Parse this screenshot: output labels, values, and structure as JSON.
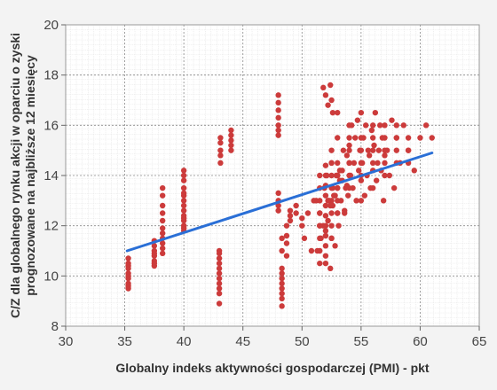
{
  "chart_data": {
    "type": "scatter",
    "xlabel": "Globalny indeks aktywności gospodarczej (PMI) - pkt",
    "ylabel_lines": [
      "C/Z dla globalnego rynku akcji w oparciu o zyski",
      "prognozowane na najbliższe 12 miesięcy"
    ],
    "xlim": [
      30,
      65
    ],
    "ylim": [
      8,
      20
    ],
    "x_ticks": [
      30,
      35,
      40,
      45,
      50,
      55,
      60,
      65
    ],
    "y_ticks": [
      8,
      10,
      12,
      14,
      16,
      18,
      20
    ],
    "x_tick_labels": [
      "30",
      "35",
      "40",
      "45",
      "50",
      "55",
      "60",
      "65"
    ],
    "y_tick_labels": [
      "8",
      "10",
      "12",
      "14",
      "16",
      "18",
      "20"
    ],
    "grid": true,
    "trendline": {
      "x": [
        35.2,
        61
      ],
      "y": [
        11.0,
        14.9
      ]
    },
    "point_color": "#cc3b3b",
    "trend_color": "#2a6fd6",
    "series": [
      {
        "x": [
          35.3,
          35.3,
          35.3,
          35.3,
          35.3,
          35.3,
          35.3,
          35.3,
          35.3,
          35.3,
          37.5,
          37.5,
          37.5,
          37.5,
          37.5,
          37.5,
          37.5,
          37.5,
          38.2,
          38.2,
          38.2,
          38.2,
          38.2,
          38.2,
          38.2,
          38.2,
          38.2,
          38.2,
          38.2,
          40.0,
          40.0,
          40.0,
          40.0,
          40.0,
          40.0,
          40.0,
          40.0,
          40.0,
          40.0,
          40.0,
          40.0,
          40.0,
          40.0,
          40.0,
          43.0,
          43.0,
          43.0,
          43.0,
          43.0,
          43.0,
          43.0,
          43.0,
          43.0,
          43.0,
          43.0,
          43.1,
          43.1,
          43.1,
          43.1,
          43.1,
          44.0,
          44.0,
          44.0,
          44.0,
          44.0,
          48.0,
          48.0,
          48.0,
          48.0,
          48.0,
          48.0,
          48.0,
          48.0,
          48.0,
          48.0,
          48.0,
          48.3,
          48.3,
          48.3,
          48.3,
          48.3,
          48.3,
          48.3,
          48.3,
          48.3,
          48.3,
          49.0,
          49.0,
          49.0,
          49.5,
          49.5,
          50.0,
          50.0,
          51.2,
          51.3,
          51.5,
          51.6,
          51.8,
          51.9,
          52.0,
          52.0,
          52.1,
          52.2,
          52.3,
          52.4,
          52.5,
          52.5,
          52.6,
          52.7,
          52.8,
          52.9,
          53.0,
          53.0,
          53.1,
          53.2,
          53.3,
          53.4,
          53.5,
          53.6,
          53.7,
          53.8,
          53.9,
          54.0,
          54.1,
          54.2,
          54.3,
          54.4,
          54.5,
          54.6,
          54.7,
          54.8,
          54.9,
          55.0,
          55.1,
          55.2,
          55.3,
          55.4,
          55.5,
          55.6,
          55.7,
          55.8,
          55.9,
          56.0,
          56.1,
          56.2,
          56.3,
          56.4,
          56.5,
          56.6,
          56.7,
          56.8,
          56.9,
          57.0,
          57.2,
          57.4,
          57.6,
          57.8,
          58.0,
          58.3,
          58.6,
          59.0,
          59.5,
          60.0,
          60.5,
          61.0,
          51.5,
          51.5,
          51.5,
          51.5,
          51.5,
          51.5,
          51.5,
          51.5,
          52.0,
          52.0,
          52.0,
          52.0,
          52.0,
          52.0,
          52.0,
          52.0,
          52.0,
          52.0,
          52.5,
          52.5,
          52.5,
          52.5,
          52.5,
          52.5,
          52.5,
          52.5,
          52.5,
          53.0,
          53.0,
          53.0,
          53.0,
          53.0,
          53.0,
          53.0,
          54.0,
          54.0,
          54.0,
          54.0,
          54.0,
          54.0,
          55.0,
          55.0,
          55.0,
          55.0,
          55.0,
          55.0,
          56.0,
          56.0,
          56.0,
          56.0,
          56.0,
          57.0,
          57.0,
          57.0,
          57.0,
          57.0,
          58.0,
          58.0,
          58.0,
          58.0,
          59.0,
          59.0,
          59.0,
          52.2,
          52.4,
          52.6,
          52.8,
          53.0,
          53.2,
          53.4,
          53.6,
          53.8,
          54.0,
          51.8,
          52.0,
          52.2,
          52.4,
          52.6,
          50.5,
          51.0,
          51.5,
          50.2,
          50.8,
          48.7,
          48.7,
          48.7,
          48.7
        ],
        "y": [
          9.5,
          9.7,
          9.9,
          10.1,
          10.3,
          10.5,
          10.7,
          9.6,
          10.0,
          10.4,
          10.4,
          10.6,
          10.8,
          11.0,
          11.2,
          11.4,
          10.5,
          10.9,
          10.9,
          11.1,
          11.3,
          11.5,
          11.7,
          11.9,
          12.2,
          12.5,
          12.8,
          13.2,
          13.5,
          11.8,
          12.0,
          12.2,
          12.4,
          12.6,
          12.8,
          13.0,
          13.2,
          13.5,
          13.8,
          14.0,
          14.2,
          11.9,
          12.3,
          13.3,
          8.9,
          9.3,
          9.5,
          9.7,
          9.9,
          10.1,
          10.3,
          10.5,
          10.7,
          10.9,
          11.0,
          14.5,
          14.8,
          15.0,
          15.3,
          15.5,
          15.0,
          15.2,
          15.4,
          15.6,
          15.8,
          12.6,
          12.8,
          13.0,
          13.3,
          15.8,
          16.0,
          16.3,
          16.6,
          16.9,
          17.2,
          15.6,
          8.8,
          9.1,
          9.3,
          9.5,
          9.7,
          9.9,
          10.1,
          10.3,
          11.0,
          11.5,
          12.2,
          12.4,
          12.6,
          12.5,
          12.8,
          12.0,
          12.3,
          13.0,
          11.0,
          12.5,
          11.5,
          12.0,
          13.5,
          10.5,
          11.8,
          14.0,
          12.2,
          13.0,
          10.3,
          11.5,
          14.5,
          12.8,
          13.2,
          11.2,
          14.0,
          13.5,
          12.5,
          12.0,
          14.2,
          13.0,
          13.8,
          15.0,
          12.5,
          13.5,
          14.8,
          13.2,
          15.2,
          14.0,
          16.0,
          13.5,
          14.5,
          15.5,
          13.0,
          16.2,
          14.2,
          15.0,
          13.8,
          14.5,
          15.5,
          13.2,
          16.0,
          14.0,
          15.0,
          14.8,
          13.5,
          15.8,
          14.2,
          15.2,
          16.5,
          13.8,
          14.5,
          15.0,
          16.0,
          14.2,
          15.5,
          13.0,
          14.8,
          15.0,
          14.0,
          16.2,
          13.5,
          15.5,
          14.5,
          16.0,
          15.0,
          14.2,
          15.5,
          16.0,
          15.5,
          10.5,
          11.0,
          11.5,
          12.0,
          12.5,
          13.0,
          13.5,
          14.0,
          10.8,
          11.2,
          11.6,
          12.0,
          12.4,
          12.8,
          13.2,
          13.6,
          14.0,
          14.4,
          11.5,
          12.0,
          12.5,
          13.0,
          13.5,
          14.0,
          14.5,
          15.0,
          17.0,
          12.5,
          13.0,
          13.5,
          14.0,
          14.5,
          15.5,
          16.5,
          13.5,
          14.0,
          14.5,
          15.0,
          15.5,
          16.0,
          13.0,
          14.0,
          14.5,
          15.0,
          15.5,
          16.5,
          13.5,
          14.5,
          15.0,
          15.5,
          16.0,
          14.0,
          14.5,
          15.0,
          15.5,
          16.0,
          14.5,
          15.0,
          15.5,
          16.0,
          14.5,
          15.0,
          15.5,
          13.0,
          12.8,
          13.5,
          13.2,
          14.0,
          13.8,
          14.2,
          12.6,
          13.6,
          14.5,
          17.5,
          17.2,
          16.8,
          17.6,
          16.5,
          12.5,
          13.0,
          12.0,
          11.5,
          11.0,
          10.8,
          11.3,
          11.6,
          12.0
        ]
      }
    ]
  }
}
